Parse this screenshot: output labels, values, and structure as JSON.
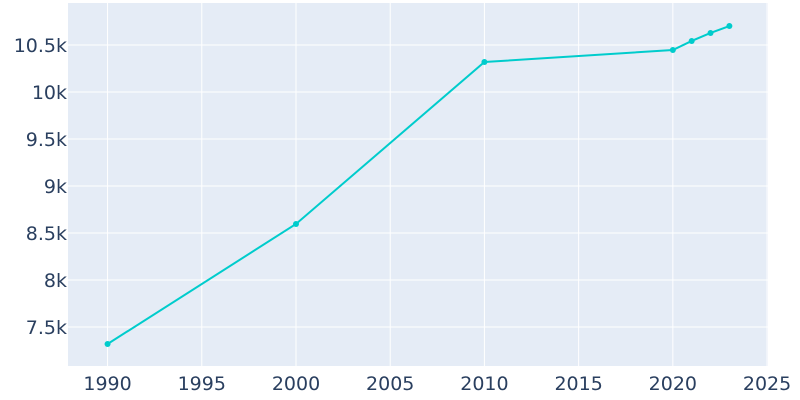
{
  "chart_data": {
    "type": "line",
    "title": "",
    "xlabel": "",
    "ylabel": "",
    "x": [
      1990,
      2000,
      2010,
      2020,
      2021,
      2022,
      2023
    ],
    "values": [
      7319,
      8596,
      10319,
      10447,
      10543,
      10628,
      10702
    ],
    "xlim": [
      1987.9,
      2025.05
    ],
    "ylim": [
      7085,
      10947
    ],
    "xticks": [
      1990,
      1995,
      2000,
      2005,
      2010,
      2015,
      2020,
      2025
    ],
    "xtick_labels": [
      "1990",
      "1995",
      "2000",
      "2005",
      "2010",
      "2015",
      "2020",
      "2025"
    ],
    "yticks": [
      7500,
      8000,
      8500,
      9000,
      9500,
      10000,
      10500
    ],
    "ytick_labels": [
      "7.5k",
      "8k",
      "8.5k",
      "9k",
      "9.5k",
      "10k",
      "10.5k"
    ],
    "grid": true,
    "colors": {
      "line": "#00cccc",
      "plot_bg": "#e5ecf6",
      "grid": "#ffffff",
      "text": "#2a3f5f"
    }
  }
}
